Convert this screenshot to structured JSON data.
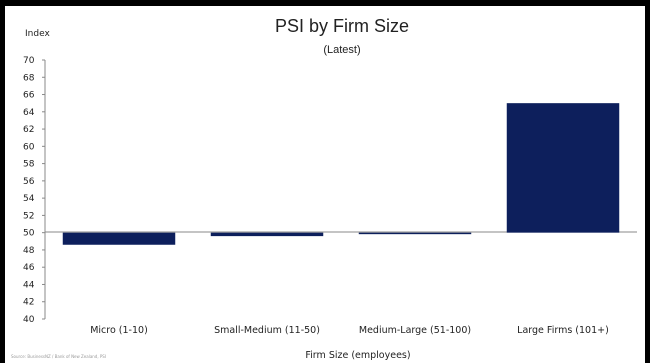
{
  "chart_data": {
    "type": "bar",
    "title": "PSI by Firm Size",
    "subtitle": "(Latest)",
    "ylabel": "Index",
    "xlabel": "Firm Size (employees)",
    "categories": [
      "Micro (1-10)",
      "Small-Medium (11-50)",
      "Medium-Large (51-100)",
      "Large Firms (101+)"
    ],
    "values": [
      48.6,
      49.6,
      49.9,
      65.0
    ],
    "baseline": 50,
    "ylim": [
      40,
      70
    ],
    "yticks": [
      "40",
      "42",
      "44",
      "46",
      "48",
      "50",
      "52",
      "54",
      "56",
      "58",
      "60",
      "62",
      "64",
      "66",
      "68",
      "70"
    ],
    "grid": false,
    "legend": "none",
    "bar_color": "#0d1f5c",
    "source": "Source: BusinessNZ / Bank of New Zealand, PSI"
  }
}
